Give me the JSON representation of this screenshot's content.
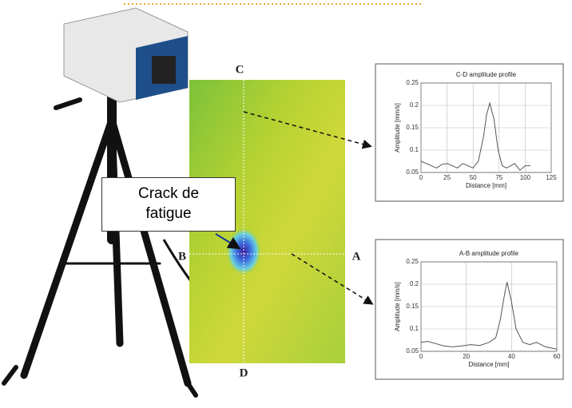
{
  "labels": {
    "c": "C",
    "d": "D",
    "a": "A",
    "b": "B"
  },
  "callout": "Crack de fatigue",
  "chart_data": [
    {
      "type": "line",
      "title": "C-D amplitude profile",
      "xlabel": "Distance [mm]",
      "ylabel": "Amplitude [mm/s]",
      "x": [
        0,
        5,
        10,
        15,
        20,
        25,
        30,
        35,
        40,
        45,
        50,
        55,
        60,
        63,
        66,
        70,
        74,
        78,
        82,
        86,
        90,
        95,
        100,
        105
      ],
      "values": [
        0.075,
        0.07,
        0.065,
        0.06,
        0.068,
        0.07,
        0.065,
        0.06,
        0.07,
        0.065,
        0.06,
        0.075,
        0.13,
        0.18,
        0.205,
        0.17,
        0.1,
        0.065,
        0.06,
        0.065,
        0.07,
        0.055,
        0.065,
        0.065
      ],
      "color": "#555555",
      "xlim": [
        0,
        125
      ],
      "xticks": [
        0,
        25,
        50,
        75,
        100,
        125
      ],
      "ylim": [
        0.05,
        0.25
      ],
      "yticks": [
        0.05,
        0.1,
        0.15,
        0.2,
        0.25
      ],
      "grid": true
    },
    {
      "type": "line",
      "title": "A-B amplitude profile",
      "xlabel": "Distance [mm]",
      "ylabel": "Amplitude [mm/s]",
      "x": [
        0,
        3,
        6,
        10,
        14,
        18,
        22,
        26,
        30,
        33,
        35,
        37,
        38,
        40,
        42,
        45,
        48,
        51,
        55,
        60
      ],
      "values": [
        0.07,
        0.072,
        0.068,
        0.062,
        0.06,
        0.062,
        0.065,
        0.063,
        0.07,
        0.08,
        0.12,
        0.18,
        0.205,
        0.16,
        0.1,
        0.07,
        0.065,
        0.07,
        0.06,
        0.055
      ],
      "color": "#555555",
      "xlim": [
        0,
        60
      ],
      "xticks": [
        0,
        20,
        40,
        60
      ],
      "ylim": [
        0.05,
        0.25
      ],
      "yticks": [
        0.05,
        0.1,
        0.15,
        0.2,
        0.25
      ],
      "grid": true
    }
  ]
}
